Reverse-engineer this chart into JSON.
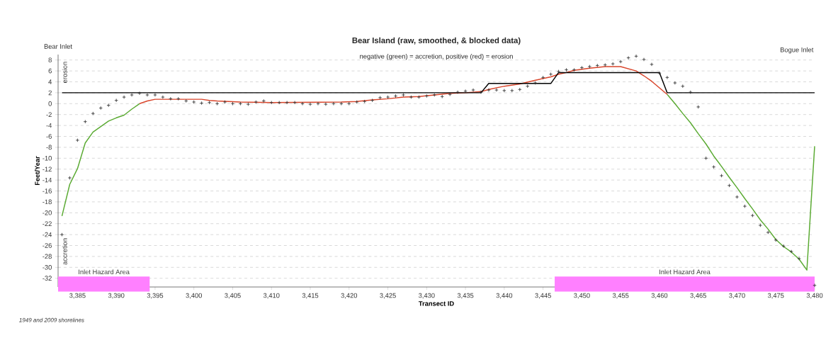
{
  "chart_data": {
    "type": "line",
    "title": "Bear Island (raw, smoothed, & blocked data)",
    "subtitle": "negative (green) = accretion, positive (red) = erosion",
    "xlabel": "Transect ID",
    "ylabel": "Feet/Year",
    "annotations": [
      "Bear Inlet",
      "Bogue Inlet",
      "erosion",
      "accretion",
      "1949 and 2009 shorelines"
    ],
    "xlim": [
      3382.5,
      3480
    ],
    "ylim": [
      -33.6,
      9
    ],
    "xticks": [
      {
        "value": 3385,
        "label": "3,385"
      },
      {
        "value": 3390,
        "label": "3,390"
      },
      {
        "value": 3395,
        "label": "3,395"
      },
      {
        "value": 3400,
        "label": "3,400"
      },
      {
        "value": 3405,
        "label": "3,405"
      },
      {
        "value": 3410,
        "label": "3,410"
      },
      {
        "value": 3415,
        "label": "3,415"
      },
      {
        "value": 3420,
        "label": "3,420"
      },
      {
        "value": 3425,
        "label": "3,425"
      },
      {
        "value": 3430,
        "label": "3,430"
      },
      {
        "value": 3435,
        "label": "3,435"
      },
      {
        "value": 3440,
        "label": "3,440"
      },
      {
        "value": 3445,
        "label": "3,445"
      },
      {
        "value": 3450,
        "label": "3,450"
      },
      {
        "value": 3455,
        "label": "3,455"
      },
      {
        "value": 3460,
        "label": "3,460"
      },
      {
        "value": 3465,
        "label": "3,465"
      },
      {
        "value": 3470,
        "label": "3,470"
      },
      {
        "value": 3475,
        "label": "3,475"
      },
      {
        "value": 3480,
        "label": "3,480"
      }
    ],
    "yticks": [
      -32,
      -30,
      -28,
      -26,
      -24,
      -22,
      -20,
      -18,
      -16,
      -14,
      -12,
      -10,
      -8,
      -6,
      -4,
      -2,
      0,
      2,
      4,
      6,
      8
    ],
    "grid": "y",
    "bands": [
      {
        "axis": "x",
        "from": 3382.5,
        "to": 3394.3,
        "label": "Inlet Hazard Area",
        "color": "#ff80ff"
      },
      {
        "axis": "x",
        "from": 3446.5,
        "to": 3480,
        "label": "Inlet Hazard Area",
        "color": "#ff80ff"
      }
    ],
    "series": [
      {
        "type": "scatter",
        "marker": "cross",
        "color": "#262626",
        "x": [
          3383,
          3384,
          3385,
          3386,
          3387,
          3388,
          3389,
          3390,
          3391,
          3392,
          3393,
          3394,
          3395,
          3396,
          3397,
          3398,
          3399,
          3400,
          3401,
          3402,
          3403,
          3404,
          3405,
          3406,
          3407,
          3408,
          3409,
          3410,
          3411,
          3412,
          3413,
          3414,
          3415,
          3416,
          3417,
          3418,
          3419,
          3420,
          3421,
          3422,
          3423,
          3424,
          3425,
          3426,
          3427,
          3428,
          3429,
          3430,
          3431,
          3432,
          3433,
          3434,
          3435,
          3436,
          3437,
          3438,
          3439,
          3440,
          3441,
          3442,
          3443,
          3444,
          3445,
          3446,
          3447,
          3448,
          3449,
          3450,
          3451,
          3452,
          3453,
          3454,
          3455,
          3456,
          3457,
          3458,
          3459,
          3460,
          3461,
          3462,
          3463,
          3464,
          3465,
          3466,
          3467,
          3468,
          3469,
          3470,
          3471,
          3472,
          3473,
          3474,
          3475,
          3476,
          3477,
          3478,
          3479,
          3480
        ],
        "values": [
          -24.0,
          -13.6,
          -6.7,
          -3.3,
          -1.8,
          -0.8,
          -0.3,
          0.6,
          1.2,
          1.6,
          1.9,
          1.6,
          1.6,
          1.2,
          0.9,
          0.9,
          0.5,
          0.3,
          0.1,
          0.2,
          0.0,
          0.3,
          0.0,
          0.0,
          -0.1,
          0.3,
          0.5,
          0.2,
          0.2,
          0.2,
          0.2,
          0.0,
          -0.1,
          0.0,
          -0.1,
          0.0,
          0.0,
          0.0,
          0.3,
          0.4,
          0.6,
          1.1,
          1.2,
          1.4,
          1.6,
          1.2,
          1.2,
          1.4,
          1.6,
          1.3,
          1.7,
          2.1,
          2.3,
          2.5,
          2.1,
          2.5,
          2.5,
          2.4,
          2.4,
          2.6,
          3.2,
          3.8,
          4.8,
          5.4,
          5.9,
          6.2,
          6.2,
          6.6,
          6.8,
          7.0,
          7.1,
          7.3,
          7.7,
          8.4,
          8.7,
          8.1,
          7.2,
          5.6,
          4.8,
          3.8,
          3.2,
          2.1,
          -0.6,
          -10.0,
          -11.6,
          -13.2,
          -15.0,
          -17.1,
          -18.8,
          -20.5,
          -22.3,
          -23.6,
          -25.0,
          -26.1,
          -27.1,
          -28.4,
          null,
          -33.3
        ]
      },
      {
        "color": "#5aaa32",
        "x": [
          3383,
          3384,
          3385,
          3386,
          3387,
          3388,
          3389,
          3390,
          3391,
          3392,
          3393
        ],
        "values": [
          -20.6,
          -14.8,
          -11.9,
          -7.2,
          -5.2,
          -4.2,
          -3.2,
          -2.6,
          -2.1,
          -1.0,
          0.0
        ]
      },
      {
        "color": "#d9452b",
        "x": [
          3393,
          3394,
          3395,
          3398,
          3401,
          3402,
          3403,
          3406,
          3410,
          3419,
          3421,
          3423,
          3425,
          3427,
          3429,
          3431,
          3433,
          3435,
          3436,
          3437,
          3438,
          3440,
          3442,
          3444,
          3446,
          3447,
          3448,
          3449,
          3451,
          3453,
          3455,
          3457,
          3458,
          3459,
          3460,
          3461
        ],
        "values": [
          0.0,
          0.5,
          0.8,
          0.8,
          0.8,
          0.6,
          0.5,
          0.3,
          0.2,
          0.3,
          0.4,
          0.7,
          0.9,
          1.2,
          1.3,
          1.6,
          1.9,
          2.0,
          2.1,
          2.2,
          2.6,
          3.2,
          3.6,
          4.3,
          4.9,
          5.4,
          5.7,
          6.1,
          6.5,
          6.8,
          6.8,
          6.0,
          5.1,
          4.1,
          2.9,
          1.7
        ]
      },
      {
        "color": "#5aaa32",
        "x": [
          3461,
          3462,
          3463,
          3464,
          3465,
          3466,
          3467,
          3468,
          3469,
          3470,
          3471,
          3472,
          3473,
          3474,
          3475,
          3476,
          3477,
          3478,
          3479,
          3480
        ],
        "values": [
          1.7,
          0.0,
          -1.8,
          -3.5,
          -5.5,
          -7.4,
          -9.6,
          -11.5,
          -13.5,
          -15.4,
          -17.4,
          -19.3,
          -21.3,
          -23.0,
          -24.9,
          -26.2,
          -27.2,
          -28.5,
          -30.5,
          -7.8
        ]
      },
      {
        "color": "#000000",
        "x": [
          3383,
          3437,
          3438,
          3446,
          3447,
          3460,
          3461,
          3480
        ],
        "values": [
          2.0,
          2.0,
          3.7,
          3.7,
          5.7,
          5.7,
          2.0,
          2.0
        ]
      }
    ]
  }
}
